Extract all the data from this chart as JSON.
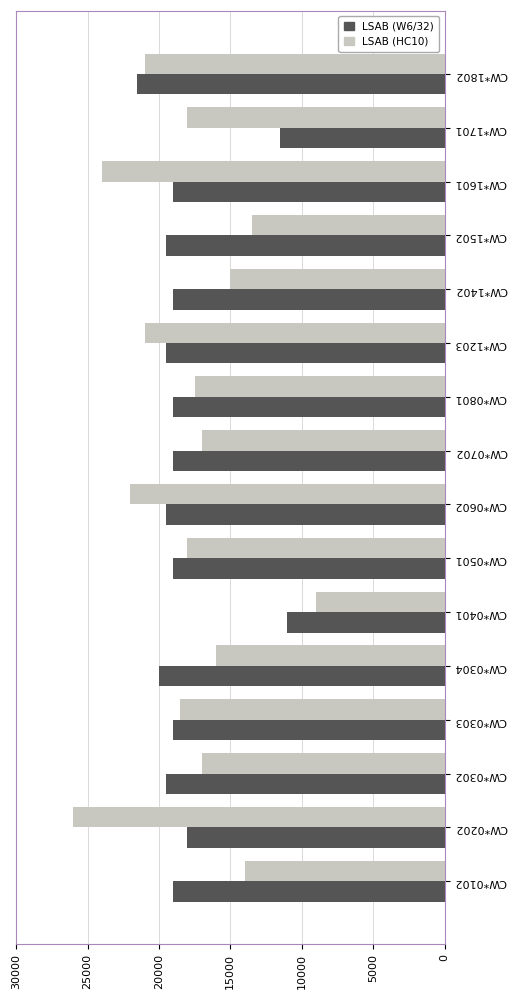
{
  "categories": [
    "CW*1802",
    "CW*1701",
    "CW*1601",
    "CW*1502",
    "CW*1402",
    "CW*1203",
    "CW*0801",
    "CW*0702",
    "CW*0602",
    "CW*0501",
    "CW*0401",
    "CW*0304",
    "CW*0303",
    "CW*0302",
    "CW*0202",
    "CW*0102"
  ],
  "w6_32": [
    21500,
    11500,
    19000,
    19500,
    19000,
    19500,
    19000,
    19000,
    19500,
    19000,
    11000,
    20000,
    19000,
    19500,
    18000,
    19000
  ],
  "hc10": [
    21000,
    18000,
    24000,
    13500,
    15000,
    21000,
    17500,
    17000,
    22000,
    18000,
    9000,
    16000,
    18500,
    17000,
    26000,
    14000
  ],
  "color_w6": "#555555",
  "color_hc10": "#c8c8c0",
  "legend_w6": "LSAB (W6/32)",
  "legend_hc10": "LSAB (HC10)",
  "xlim_max": 30000,
  "xticks": [
    0,
    5000,
    10000,
    15000,
    20000,
    25000,
    30000
  ],
  "background": "#ffffff",
  "border_color": "#aa88bb",
  "fig_width": 5.18,
  "fig_height": 10.0
}
